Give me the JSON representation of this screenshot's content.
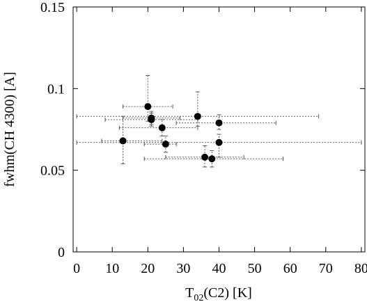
{
  "chart_data": {
    "type": "scatter",
    "title": "",
    "xlabel": "T02(C2) [K]",
    "xlabel_main": "T",
    "xlabel_sub": "02",
    "xlabel_rest": "(C2) [K]",
    "ylabel": "fwhm(CH 4300) [A]",
    "xlim": [
      -1,
      81
    ],
    "ylim": [
      0,
      0.15
    ],
    "x_ticks": [
      0,
      10,
      20,
      30,
      40,
      50,
      60,
      70,
      80
    ],
    "y_ticks": [
      0,
      0.05,
      0.1,
      0.15
    ],
    "x_tick_labels": [
      "0",
      "10",
      "20",
      "30",
      "40",
      "50",
      "60",
      "70",
      "80"
    ],
    "y_tick_labels": [
      "0",
      "0.05",
      "0.1",
      "0.15"
    ],
    "grid": false,
    "legend": "none",
    "marker_color": "#000000",
    "errorbar_color": "#555555",
    "points": [
      {
        "x": 13,
        "y": 0.068,
        "xerr": [
          6,
          11
        ],
        "yerr": [
          0.014,
          0.015
        ]
      },
      {
        "x": 20,
        "y": 0.089,
        "xerr": [
          7,
          7
        ],
        "yerr": [
          0.009,
          0.019
        ]
      },
      {
        "x": 21,
        "y": 0.082,
        "xerr": [
          8,
          8
        ],
        "yerr": [
          0.004,
          0.004
        ]
      },
      {
        "x": 21,
        "y": 0.081,
        "xerr": [
          13,
          13
        ],
        "yerr": [
          0.004,
          0.004
        ]
      },
      {
        "x": 24,
        "y": 0.076,
        "xerr": [
          12,
          10
        ],
        "yerr": [
          0.005,
          0.005
        ]
      },
      {
        "x": 25,
        "y": 0.066,
        "xerr": [
          6,
          3
        ],
        "yerr": [
          0.005,
          0.005
        ]
      },
      {
        "x": 34,
        "y": 0.083,
        "xerr": [
          34,
          34
        ],
        "yerr": [
          0.006,
          0.015
        ]
      },
      {
        "x": 36,
        "y": 0.058,
        "xerr": [
          11,
          11
        ],
        "yerr": [
          0.006,
          0.007
        ]
      },
      {
        "x": 38,
        "y": 0.057,
        "xerr": [
          19,
          20
        ],
        "yerr": [
          0.005,
          0.005
        ]
      },
      {
        "x": 40,
        "y": 0.079,
        "xerr": [
          12,
          16
        ],
        "yerr": [
          0.004,
          0.005
        ]
      },
      {
        "x": 40,
        "y": 0.067,
        "xerr": [
          40,
          40
        ],
        "yerr": [
          0.009,
          0.005
        ]
      }
    ]
  }
}
